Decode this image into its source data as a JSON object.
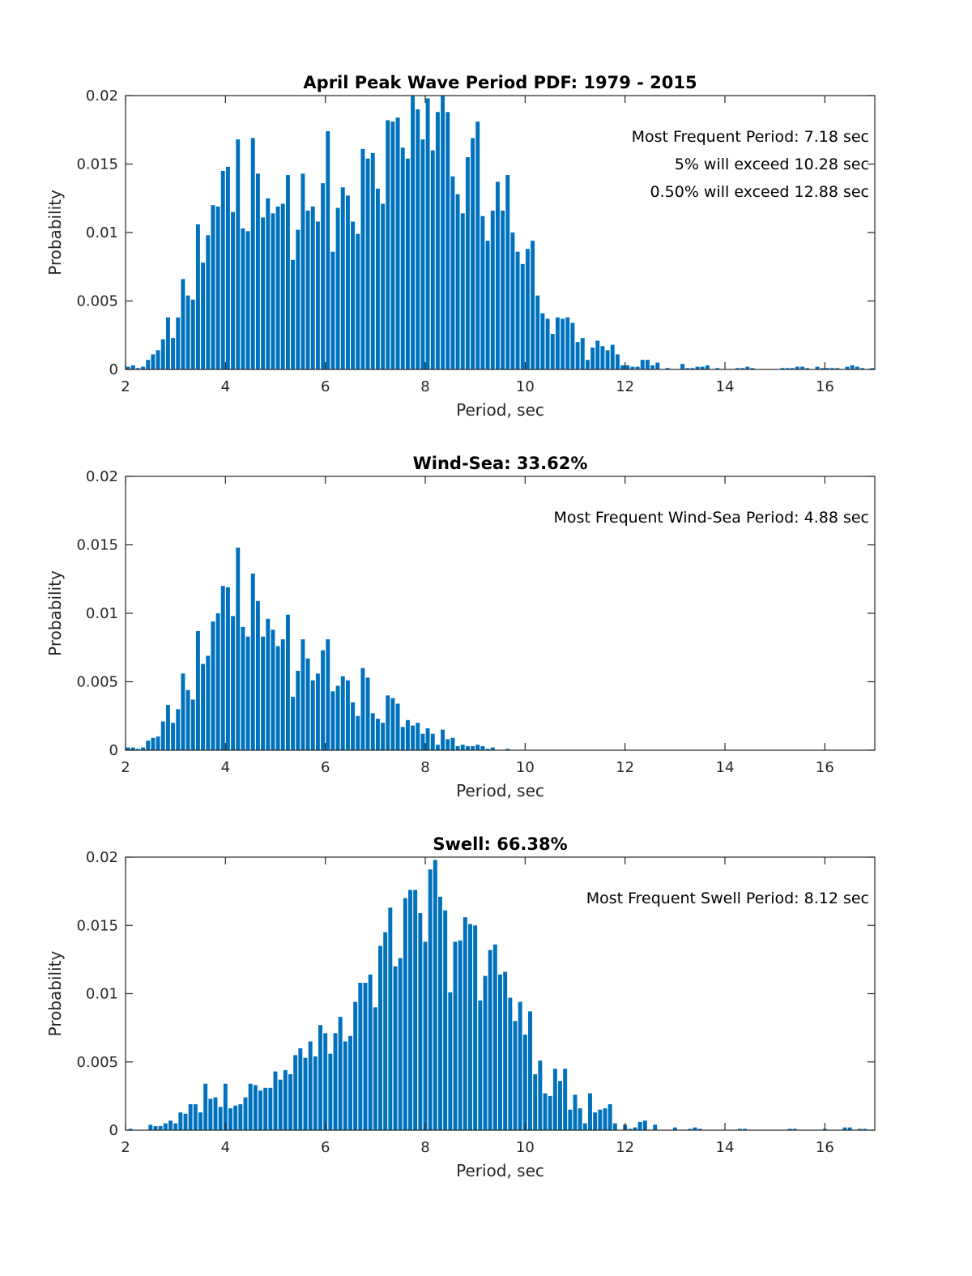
{
  "chart_data": [
    {
      "type": "bar",
      "title": "April Peak Wave Period PDF: 1979 - 2015",
      "xlabel": "Period, sec",
      "ylabel": "Probability",
      "xlim": [
        2,
        17
      ],
      "ylim": [
        0,
        0.02
      ],
      "xticks": [
        "2",
        "4",
        "6",
        "8",
        "10",
        "12",
        "14",
        "16"
      ],
      "yticks": [
        "0",
        "0.005",
        "0.01",
        "0.015",
        "0.02"
      ],
      "grid": false,
      "bar_color": "#0072BD",
      "bin_first_center": 2.05,
      "bin_width": 0.1,
      "annotations": [
        "Most Frequent Period: 7.18 sec",
        "5% will exceed 10.28 sec",
        "0.50% will exceed 12.88 sec"
      ],
      "values": [
        0.0002,
        0.0003,
        0.0001,
        0.0002,
        0.0007,
        0.0011,
        0.0014,
        0.0022,
        0.0038,
        0.0023,
        0.0038,
        0.0066,
        0.0054,
        0.0051,
        0.0106,
        0.0078,
        0.0098,
        0.012,
        0.0119,
        0.0145,
        0.0148,
        0.0115,
        0.0168,
        0.0103,
        0.0101,
        0.0169,
        0.0143,
        0.0111,
        0.0125,
        0.0114,
        0.0119,
        0.0121,
        0.0142,
        0.008,
        0.0102,
        0.0143,
        0.0116,
        0.0119,
        0.0108,
        0.0136,
        0.0174,
        0.0086,
        0.0118,
        0.0133,
        0.0127,
        0.0108,
        0.0099,
        0.0161,
        0.0154,
        0.0158,
        0.0132,
        0.0121,
        0.0182,
        0.0181,
        0.0184,
        0.0162,
        0.0154,
        0.02,
        0.019,
        0.0168,
        0.0198,
        0.016,
        0.0188,
        0.02,
        0.0188,
        0.0141,
        0.0128,
        0.0114,
        0.0155,
        0.0169,
        0.0181,
        0.0112,
        0.0094,
        0.0116,
        0.0137,
        0.0116,
        0.0142,
        0.01,
        0.0086,
        0.0077,
        0.0088,
        0.0094,
        0.0054,
        0.0041,
        0.0037,
        0.0026,
        0.0038,
        0.0037,
        0.0038,
        0.0034,
        0.002,
        0.0023,
        0.0007,
        0.0016,
        0.0021,
        0.0017,
        0.0014,
        0.0018,
        0.0011,
        0.0003,
        0.0003,
        0.0002,
        0.0002,
        0.0007,
        0.0007,
        0.0003,
        0.0005,
        0,
        0.0001,
        0,
        0,
        0.0004,
        0.0001,
        0.0001,
        0.0002,
        0.0002,
        0.0003,
        0,
        0.0001,
        0,
        0,
        0,
        0.0001,
        0.0001,
        0.0002,
        0.0001,
        0,
        0,
        0,
        0,
        0,
        0.0001,
        0.0001,
        0.0001,
        0.0002,
        0.0002,
        0.0001,
        0,
        0.0002,
        0.0001,
        0.0001,
        0.0001,
        0.0001,
        0,
        0.0002,
        0.0003,
        0.0002,
        0.0001,
        0,
        0.0001
      ]
    },
    {
      "type": "bar",
      "title": "Wind-Sea: 33.62%",
      "xlabel": "Period, sec",
      "ylabel": "Probability",
      "xlim": [
        2,
        17
      ],
      "ylim": [
        0,
        0.02
      ],
      "xticks": [
        "2",
        "4",
        "6",
        "8",
        "10",
        "12",
        "14",
        "16"
      ],
      "yticks": [
        "0",
        "0.005",
        "0.01",
        "0.015",
        "0.02"
      ],
      "grid": false,
      "bar_color": "#0072BD",
      "bin_first_center": 2.05,
      "bin_width": 0.1,
      "annotations": [
        "Most Frequent Wind-Sea Period: 4.88 sec"
      ],
      "values": [
        0.0002,
        0.0002,
        0.0001,
        0.0002,
        0.0007,
        0.0009,
        0.001,
        0.0021,
        0.0033,
        0.002,
        0.003,
        0.0056,
        0.0044,
        0.0037,
        0.0087,
        0.0063,
        0.0069,
        0.0094,
        0.01,
        0.012,
        0.0119,
        0.0098,
        0.0148,
        0.009,
        0.0083,
        0.0129,
        0.0109,
        0.0083,
        0.0096,
        0.0088,
        0.0076,
        0.0081,
        0.0099,
        0.0039,
        0.0058,
        0.0081,
        0.0067,
        0.0051,
        0.0056,
        0.0073,
        0.0081,
        0.0043,
        0.0047,
        0.0054,
        0.0051,
        0.0035,
        0.0025,
        0.006,
        0.0053,
        0.0027,
        0.0023,
        0.002,
        0.004,
        0.0038,
        0.0034,
        0.0017,
        0.0022,
        0.0018,
        0.002,
        0.0012,
        0.0016,
        0.0012,
        0.0004,
        0.0015,
        0.0008,
        0.0009,
        0.0003,
        0.0004,
        0.0003,
        0.0003,
        0.0004,
        0.0003,
        0.0001,
        0.0002,
        0,
        0,
        0.0001,
        0,
        0,
        0,
        0,
        0,
        0,
        0,
        0,
        0,
        0,
        0,
        0,
        0,
        0,
        0,
        0,
        0,
        0,
        0,
        0,
        0,
        0,
        0,
        0,
        0,
        0,
        0,
        0,
        0,
        0,
        0,
        0,
        0,
        0,
        0,
        0,
        0,
        0,
        0,
        0,
        0,
        0,
        0,
        0,
        0,
        0,
        0,
        0,
        0,
        0,
        0,
        0,
        0,
        0,
        0,
        0,
        0,
        0,
        0,
        0,
        0,
        0,
        0,
        0,
        0,
        0,
        0,
        0,
        0,
        0,
        0,
        0,
        0
      ]
    },
    {
      "type": "bar",
      "title": "Swell: 66.38%",
      "xlabel": "Period, sec",
      "ylabel": "Probability",
      "xlim": [
        2,
        17
      ],
      "ylim": [
        0,
        0.02
      ],
      "xticks": [
        "2",
        "4",
        "6",
        "8",
        "10",
        "12",
        "14",
        "16"
      ],
      "yticks": [
        "0",
        "0.005",
        "0.01",
        "0.015",
        "0.02"
      ],
      "grid": false,
      "bar_color": "#0072BD",
      "bin_first_center": 2.0,
      "bin_width": 0.1,
      "annotations": [
        "Most Frequent Swell Period: 8.12 sec"
      ],
      "values": [
        0,
        0.0001,
        0,
        0,
        0,
        0.0004,
        0.0003,
        0.0003,
        0.0005,
        0.0007,
        0.0005,
        0.0013,
        0.0012,
        0.0019,
        0.0019,
        0.0013,
        0.0034,
        0.0023,
        0.0024,
        0.0017,
        0.0034,
        0.0016,
        0.0018,
        0.0019,
        0.0024,
        0.0034,
        0.0033,
        0.0029,
        0.0031,
        0.0031,
        0.0043,
        0.0037,
        0.0044,
        0.0041,
        0.0055,
        0.006,
        0.0053,
        0.0065,
        0.0054,
        0.0077,
        0.0071,
        0.0056,
        0.0071,
        0.0083,
        0.0065,
        0.0069,
        0.0094,
        0.0108,
        0.0108,
        0.0114,
        0.009,
        0.0135,
        0.0145,
        0.0163,
        0.012,
        0.0126,
        0.017,
        0.0176,
        0.0176,
        0.0159,
        0.0138,
        0.0191,
        0.0198,
        0.0171,
        0.0161,
        0.0101,
        0.0138,
        0.0139,
        0.0156,
        0.0151,
        0.015,
        0.0095,
        0.0113,
        0.0132,
        0.0136,
        0.0114,
        0.0116,
        0.0097,
        0.008,
        0.0094,
        0.007,
        0.0087,
        0.0041,
        0.0051,
        0.0027,
        0.0025,
        0.0045,
        0.0036,
        0.0045,
        0.0015,
        0.0026,
        0.0016,
        0.0005,
        0.0027,
        0.0013,
        0.0015,
        0.0016,
        0.0019,
        0.0005,
        0,
        0.0004,
        0.0001,
        0.0002,
        0.0006,
        0.0007,
        0,
        0.0004,
        0,
        0,
        0,
        0.0002,
        0,
        0,
        0.0001,
        0.0002,
        0.0001,
        0,
        0,
        0,
        0,
        0,
        0,
        0,
        0.0001,
        0.0001,
        0,
        0,
        0,
        0,
        0,
        0,
        0,
        0,
        0.0001,
        0.0001,
        0,
        0,
        0,
        0,
        0,
        0.0001,
        0,
        0,
        0,
        0.0002,
        0.0002,
        0,
        0.0001,
        0.0001,
        0
      ]
    }
  ]
}
